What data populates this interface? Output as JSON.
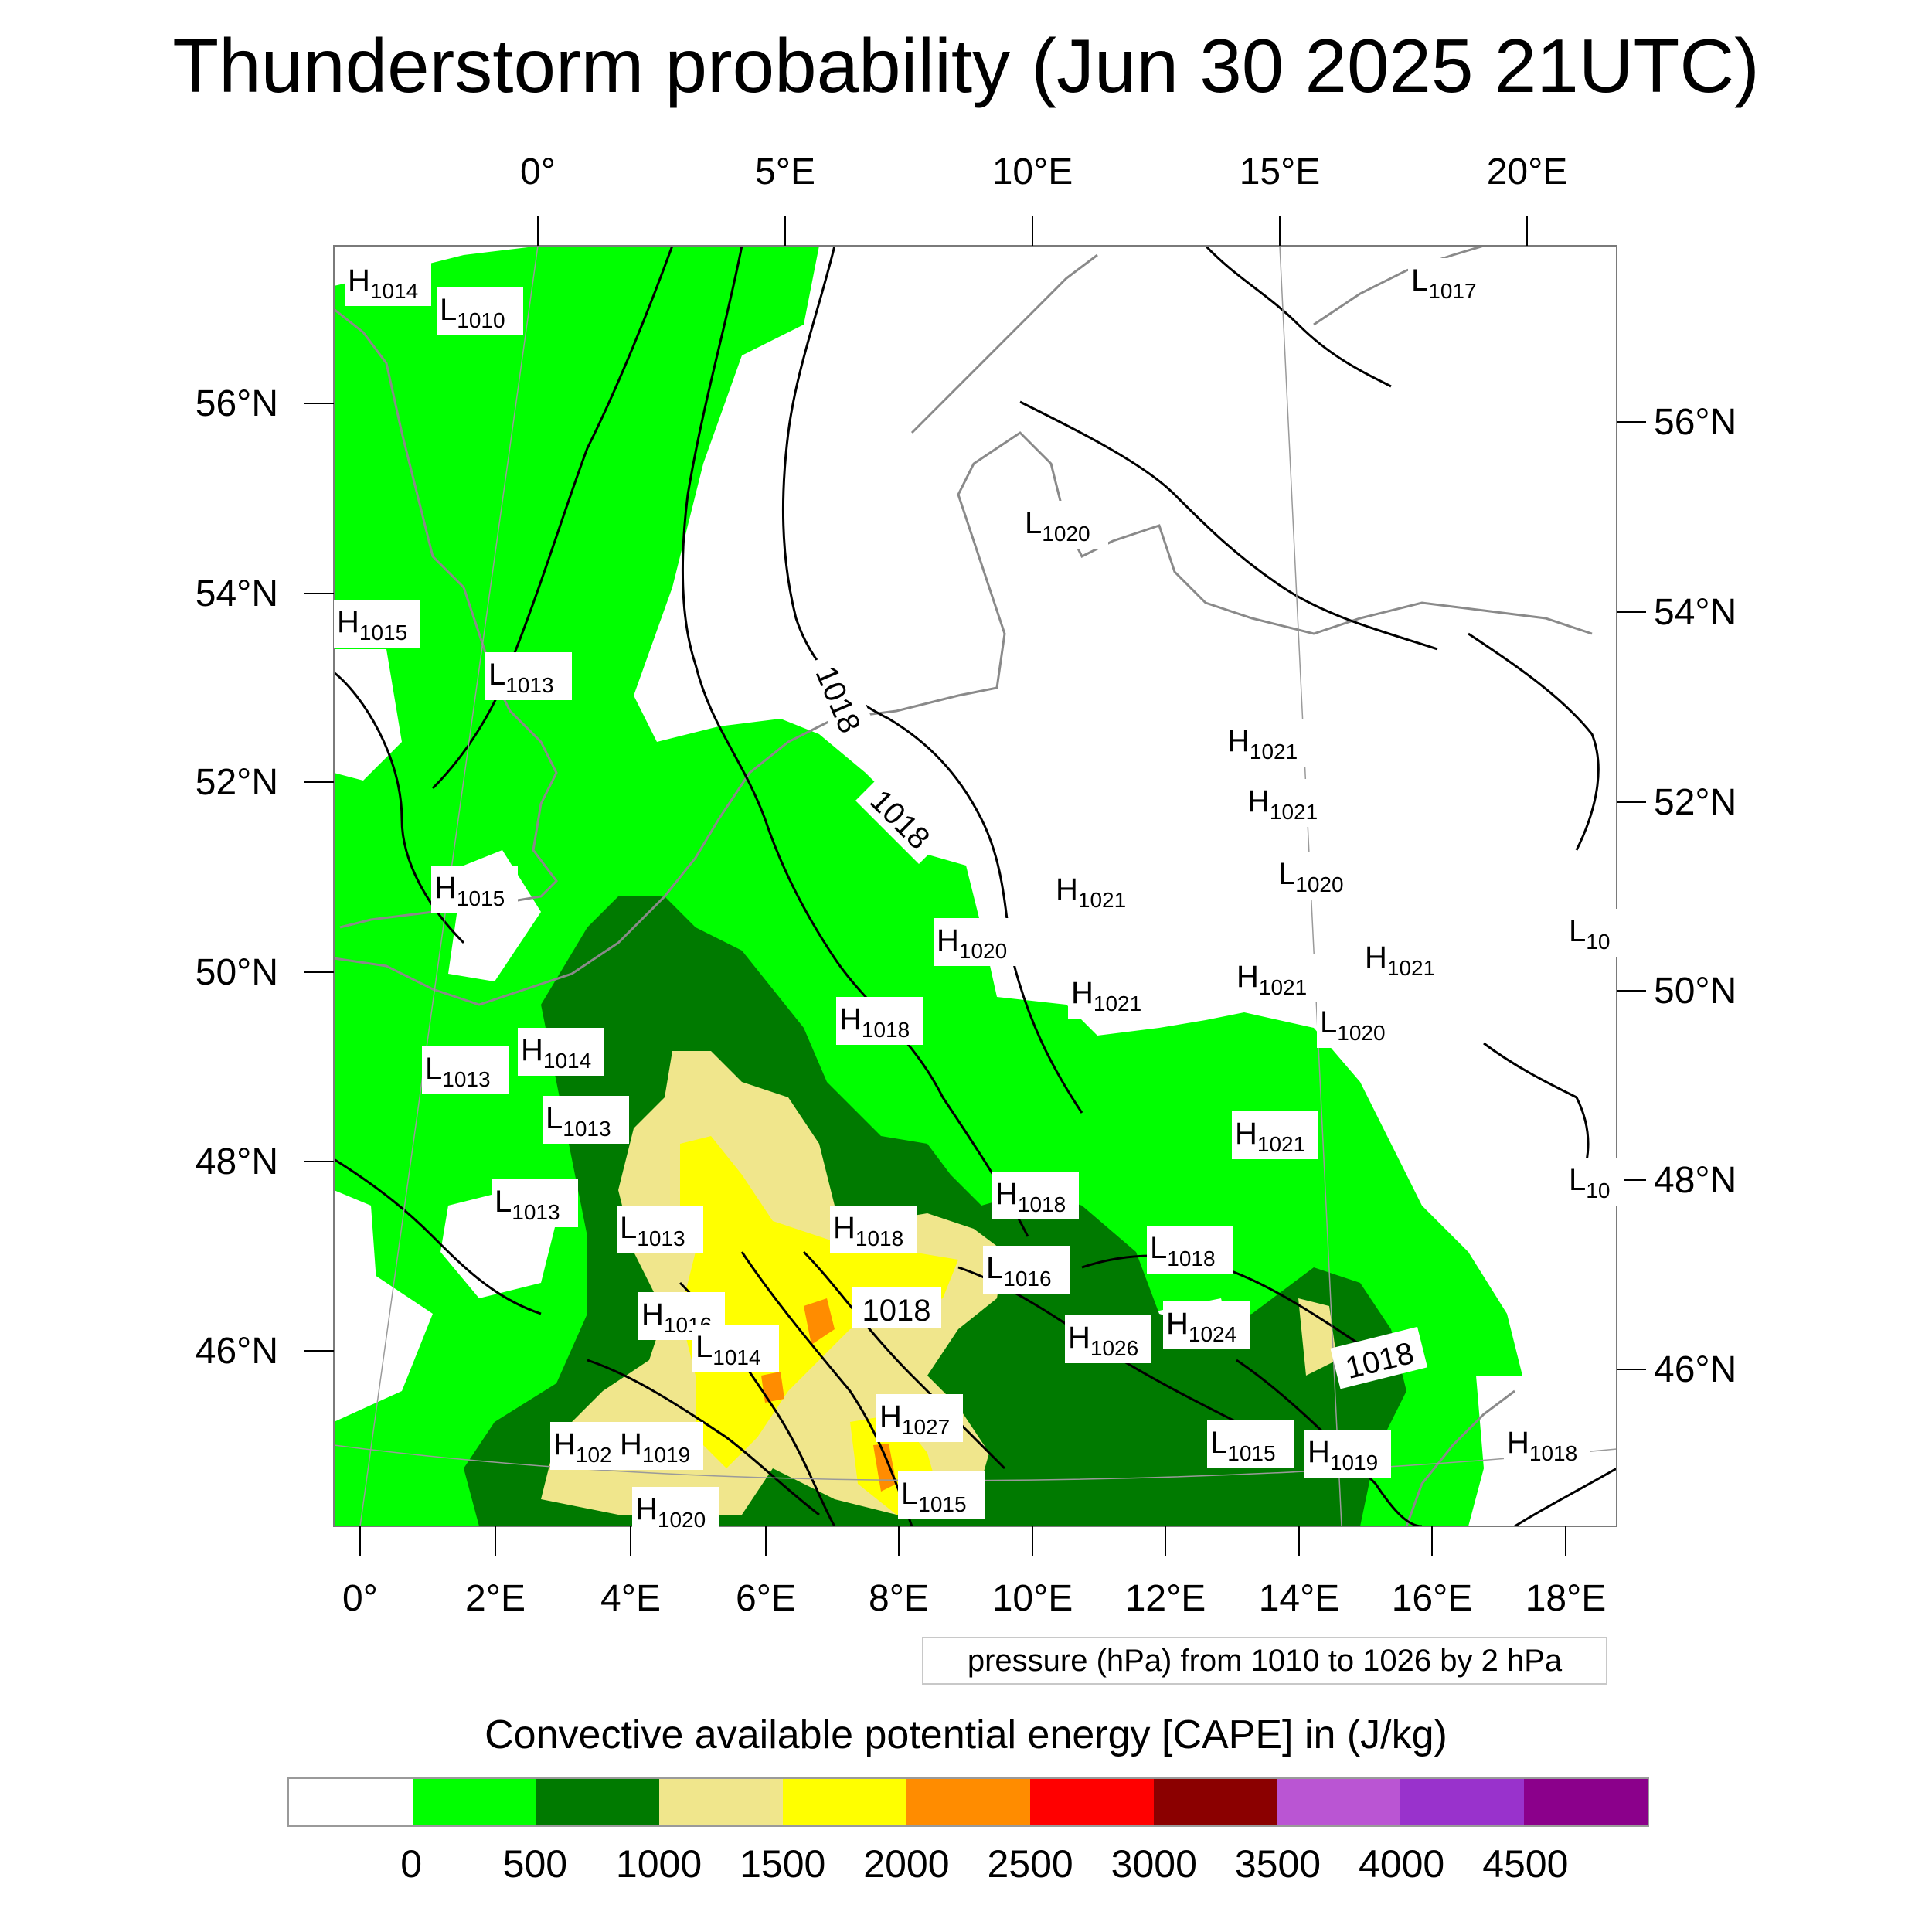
{
  "title": "Thunderstorm probability (Jun 30 2025 21UTC)",
  "map": {
    "top_lon_labels": [
      "0°",
      "5°E",
      "10°E",
      "15°E",
      "20°E"
    ],
    "bottom_lon_labels": [
      "0°",
      "2°E",
      "4°E",
      "6°E",
      "8°E",
      "10°E",
      "12°E",
      "14°E",
      "16°E",
      "18°E"
    ],
    "left_lat_labels": [
      "56°N",
      "54°N",
      "52°N",
      "50°N",
      "48°N",
      "46°N"
    ],
    "right_lat_labels": [
      "56°N",
      "54°N",
      "52°N",
      "50°N",
      "48°N",
      "46°N"
    ],
    "contour_labels": [
      "1018",
      "1018",
      "1018",
      "1018"
    ],
    "pressure_centers": [
      {
        "letter": "H",
        "value": "1014"
      },
      {
        "letter": "L",
        "value": "1010"
      },
      {
        "letter": "L",
        "value": "1017"
      },
      {
        "letter": "L",
        "value": "1020"
      },
      {
        "letter": "H",
        "value": "1015"
      },
      {
        "letter": "L",
        "value": "1013"
      },
      {
        "letter": "H",
        "value": "1021"
      },
      {
        "letter": "H",
        "value": "1021"
      },
      {
        "letter": "L",
        "value": "1020"
      },
      {
        "letter": "H",
        "value": "1015"
      },
      {
        "letter": "H",
        "value": "1021"
      },
      {
        "letter": "H",
        "value": "1020"
      },
      {
        "letter": "L",
        "value": "10"
      },
      {
        "letter": "H",
        "value": "1021"
      },
      {
        "letter": "H",
        "value": "1021"
      },
      {
        "letter": "H",
        "value": "1021"
      },
      {
        "letter": "H",
        "value": "1018"
      },
      {
        "letter": "L",
        "value": "1020"
      },
      {
        "letter": "L",
        "value": "1013"
      },
      {
        "letter": "H",
        "value": "1014"
      },
      {
        "letter": "L",
        "value": "1013"
      },
      {
        "letter": "H",
        "value": "1021"
      },
      {
        "letter": "L",
        "value": "10"
      },
      {
        "letter": "H",
        "value": "1018"
      },
      {
        "letter": "L",
        "value": "1013"
      },
      {
        "letter": "L",
        "value": "1013"
      },
      {
        "letter": "H",
        "value": "1018"
      },
      {
        "letter": "L",
        "value": "1018"
      },
      {
        "letter": "L",
        "value": "1016"
      },
      {
        "letter": "H",
        "value": "1016"
      },
      {
        "letter": "L",
        "value": "1014"
      },
      {
        "letter": "H",
        "value": "1026"
      },
      {
        "letter": "H",
        "value": "1024"
      },
      {
        "letter": "H",
        "value": "102"
      },
      {
        "letter": "H",
        "value": "1019"
      },
      {
        "letter": "H",
        "value": "1027"
      },
      {
        "letter": "L",
        "value": "1015"
      },
      {
        "letter": "H",
        "value": "1019"
      },
      {
        "letter": "H",
        "value": "1018"
      },
      {
        "letter": "H",
        "value": "1020"
      },
      {
        "letter": "L",
        "value": "1015"
      }
    ]
  },
  "legend": {
    "pressure_note": "pressure (hPa) from 1010 to 1026 by 2 hPa",
    "cape_title": "Convective available potential energy [CAPE] in (J/kg)",
    "colors": [
      "#ffffff",
      "#00ff00",
      "#007a00",
      "#f0e68c",
      "#ffff00",
      "#ff8c00",
      "#ff0000",
      "#8b0000",
      "#ba55d3",
      "#9932cc",
      "#8b008b"
    ],
    "labels": [
      "0",
      "500",
      "1000",
      "1500",
      "2000",
      "2500",
      "3000",
      "3500",
      "4000",
      "4500"
    ]
  }
}
